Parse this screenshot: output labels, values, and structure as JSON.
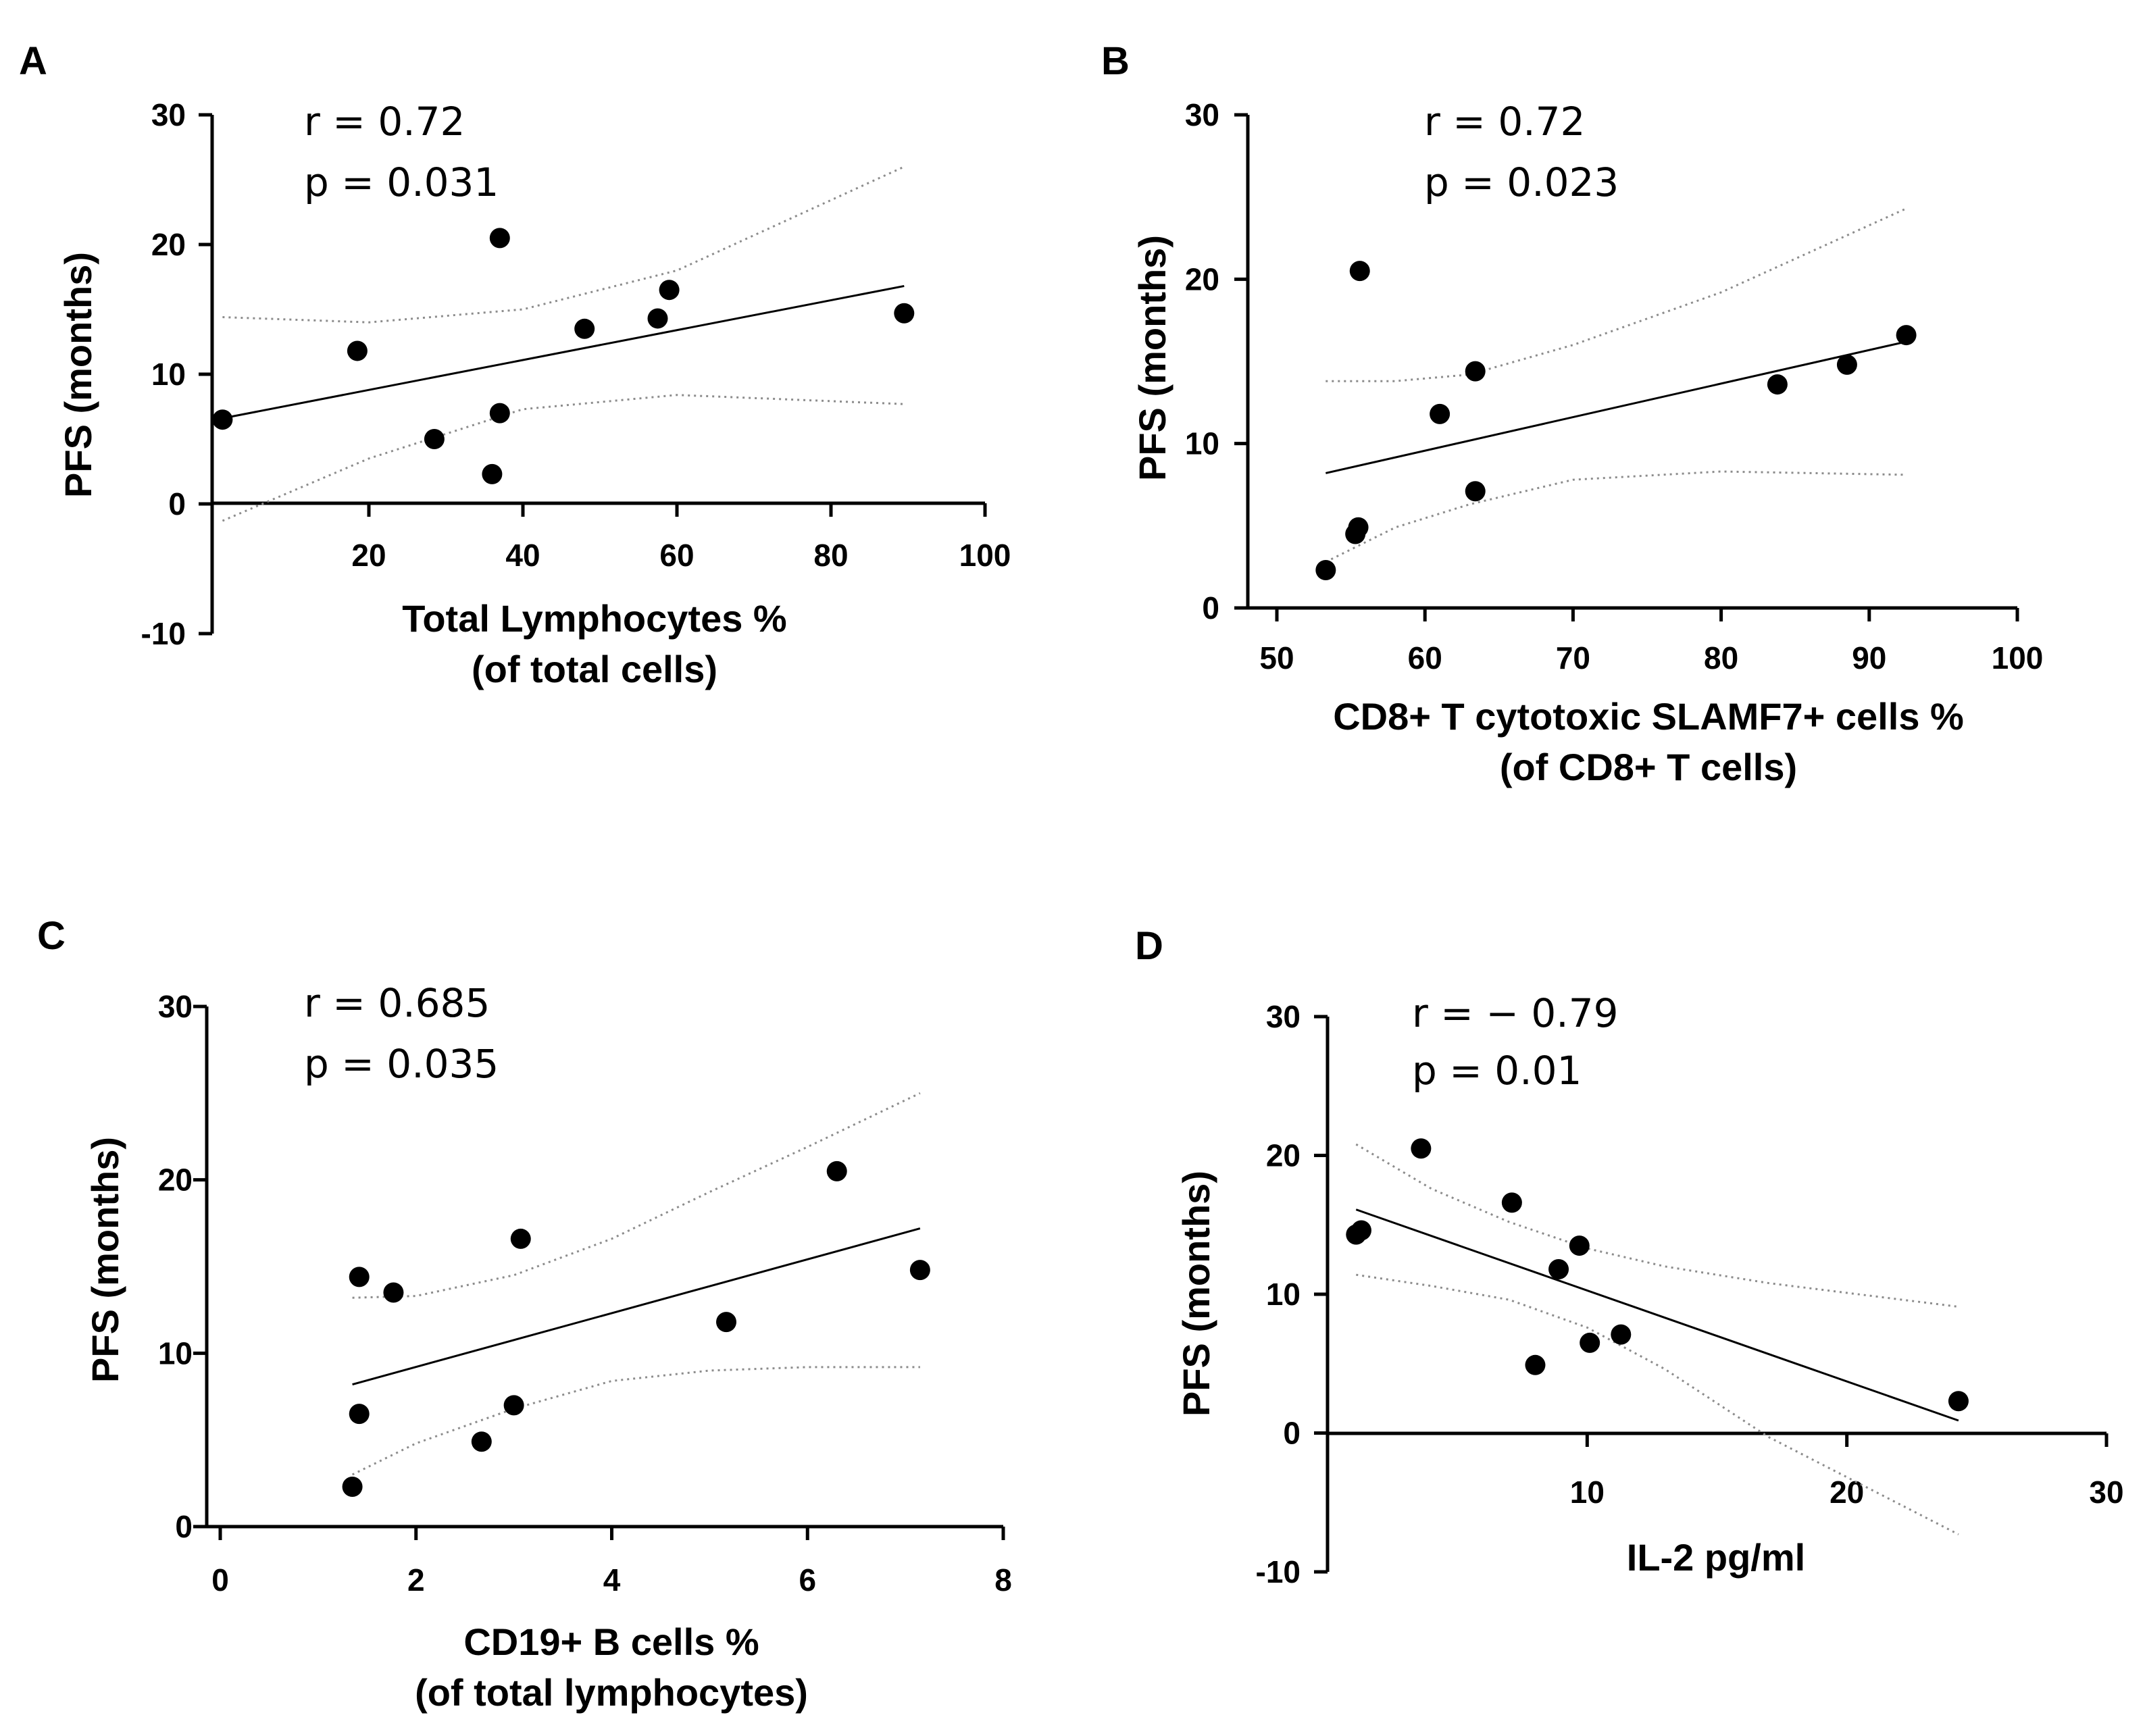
{
  "chart_data": [
    {
      "type": "scatter",
      "panel": "A",
      "stats": {
        "r": "r = 0.72",
        "p": "p = 0.031"
      },
      "xlabel": [
        "Total Lymphocytes %",
        "(of total cells)"
      ],
      "ylabel": "PFS (months)",
      "xlim": [
        0,
        100
      ],
      "ylim": [
        -10,
        30
      ],
      "xticks": [
        20,
        40,
        60,
        80,
        100
      ],
      "yticks": [
        -10,
        0,
        10,
        20,
        30
      ],
      "points": [
        {
          "x": 1,
          "y": 6.5
        },
        {
          "x": 18.5,
          "y": 11.8
        },
        {
          "x": 28.5,
          "y": 5.0
        },
        {
          "x": 36,
          "y": 2.3
        },
        {
          "x": 37,
          "y": 20.5
        },
        {
          "x": 37,
          "y": 7.0
        },
        {
          "x": 48,
          "y": 13.5
        },
        {
          "x": 57.5,
          "y": 14.3
        },
        {
          "x": 59,
          "y": 16.5
        },
        {
          "x": 89.5,
          "y": 14.7
        }
      ],
      "fit": [
        [
          1,
          6.6
        ],
        [
          89.5,
          16.8
        ]
      ],
      "ci_upper": [
        [
          1,
          14.4
        ],
        [
          20,
          14.0
        ],
        [
          40,
          15.0
        ],
        [
          60,
          18.0
        ],
        [
          89.5,
          26.0
        ]
      ],
      "ci_lower": [
        [
          1,
          -1.3
        ],
        [
          20,
          3.5
        ],
        [
          40,
          7.3
        ],
        [
          60,
          8.4
        ],
        [
          89.5,
          7.7
        ]
      ]
    },
    {
      "type": "scatter",
      "panel": "B",
      "stats": {
        "r": "r = 0.72",
        "p": "p = 0.023"
      },
      "xlabel": [
        "CD8+ T cytotoxic SLAMF7+ cells %",
        "(of CD8+ T cells)"
      ],
      "ylabel": "PFS (months)",
      "xlim": [
        50,
        100
      ],
      "ylim": [
        0,
        30
      ],
      "xticks": [
        50,
        60,
        70,
        80,
        90,
        100
      ],
      "yticks": [
        0,
        10,
        20,
        30
      ],
      "points": [
        {
          "x": 53.3,
          "y": 2.3
        },
        {
          "x": 55.3,
          "y": 4.5
        },
        {
          "x": 55.5,
          "y": 4.9
        },
        {
          "x": 55.6,
          "y": 20.5
        },
        {
          "x": 61.0,
          "y": 11.8
        },
        {
          "x": 63.4,
          "y": 14.4
        },
        {
          "x": 63.4,
          "y": 7.1
        },
        {
          "x": 83.8,
          "y": 13.6
        },
        {
          "x": 88.5,
          "y": 14.8
        },
        {
          "x": 92.5,
          "y": 16.6
        }
      ],
      "fit": [
        [
          53.3,
          8.2
        ],
        [
          92.5,
          16.2
        ]
      ],
      "ci_upper": [
        [
          53.3,
          13.8
        ],
        [
          58,
          13.8
        ],
        [
          63,
          14.2
        ],
        [
          70,
          16.0
        ],
        [
          80,
          19.2
        ],
        [
          92.5,
          24.3
        ]
      ],
      "ci_lower": [
        [
          53.3,
          2.8
        ],
        [
          58,
          4.9
        ],
        [
          63,
          6.3
        ],
        [
          70,
          7.8
        ],
        [
          80,
          8.3
        ],
        [
          92.5,
          8.1
        ]
      ]
    },
    {
      "type": "scatter",
      "panel": "C",
      "stats": {
        "r": "r = 0.685",
        "p": "p = 0.035"
      },
      "xlabel": [
        "CD19+ B cells %",
        "(of total lymphocytes)"
      ],
      "ylabel": "PFS (months)",
      "xlim": [
        0,
        8
      ],
      "ylim": [
        0,
        30
      ],
      "xticks": [
        0,
        2,
        4,
        6,
        8
      ],
      "yticks": [
        0,
        10,
        20,
        30
      ],
      "points": [
        {
          "x": 1.35,
          "y": 2.3
        },
        {
          "x": 1.42,
          "y": 14.4
        },
        {
          "x": 1.42,
          "y": 6.5
        },
        {
          "x": 1.77,
          "y": 13.5
        },
        {
          "x": 2.67,
          "y": 4.9
        },
        {
          "x": 3.0,
          "y": 7.0
        },
        {
          "x": 3.07,
          "y": 16.6
        },
        {
          "x": 5.17,
          "y": 11.8
        },
        {
          "x": 6.3,
          "y": 20.5
        },
        {
          "x": 7.15,
          "y": 14.8
        }
      ],
      "fit": [
        [
          1.35,
          8.2
        ],
        [
          7.15,
          17.2
        ]
      ],
      "ci_upper": [
        [
          1.35,
          13.2
        ],
        [
          2,
          13.3
        ],
        [
          3,
          14.5
        ],
        [
          4,
          16.6
        ],
        [
          5,
          19.3
        ],
        [
          6,
          21.9
        ],
        [
          7.15,
          25.0
        ]
      ],
      "ci_lower": [
        [
          1.35,
          3.0
        ],
        [
          2,
          4.8
        ],
        [
          3,
          6.8
        ],
        [
          4,
          8.4
        ],
        [
          5,
          9.0
        ],
        [
          6,
          9.2
        ],
        [
          7.15,
          9.2
        ]
      ]
    },
    {
      "type": "scatter",
      "panel": "D",
      "stats": {
        "r": "r = − 0.79",
        "p": "p = 0.01"
      },
      "xlabel": [
        "IL-2 pg/ml"
      ],
      "ylabel": "PFS (months)",
      "xlim": [
        0,
        30
      ],
      "ylim": [
        -10,
        30
      ],
      "xticks": [
        10,
        20,
        30
      ],
      "yticks": [
        -10,
        0,
        10,
        20,
        30
      ],
      "points": [
        {
          "x": 1.1,
          "y": 14.3
        },
        {
          "x": 1.3,
          "y": 14.6
        },
        {
          "x": 3.6,
          "y": 20.5
        },
        {
          "x": 7.1,
          "y": 16.6
        },
        {
          "x": 8.0,
          "y": 4.9
        },
        {
          "x": 8.9,
          "y": 11.8
        },
        {
          "x": 9.7,
          "y": 13.5
        },
        {
          "x": 10.1,
          "y": 6.5
        },
        {
          "x": 11.3,
          "y": 7.1
        },
        {
          "x": 24.3,
          "y": 2.3
        }
      ],
      "fit": [
        [
          1.1,
          16.1
        ],
        [
          24.3,
          0.9
        ]
      ],
      "ci_upper": [
        [
          1.1,
          20.8
        ],
        [
          4,
          17.6
        ],
        [
          7,
          15.2
        ],
        [
          10,
          13.3
        ],
        [
          13,
          12.0
        ],
        [
          17,
          10.8
        ],
        [
          24.3,
          9.1
        ]
      ],
      "ci_lower": [
        [
          1.1,
          11.4
        ],
        [
          4,
          10.6
        ],
        [
          7,
          9.6
        ],
        [
          10,
          7.6
        ],
        [
          13,
          4.6
        ],
        [
          17,
          -0.3
        ],
        [
          24.3,
          -7.3
        ]
      ]
    }
  ]
}
